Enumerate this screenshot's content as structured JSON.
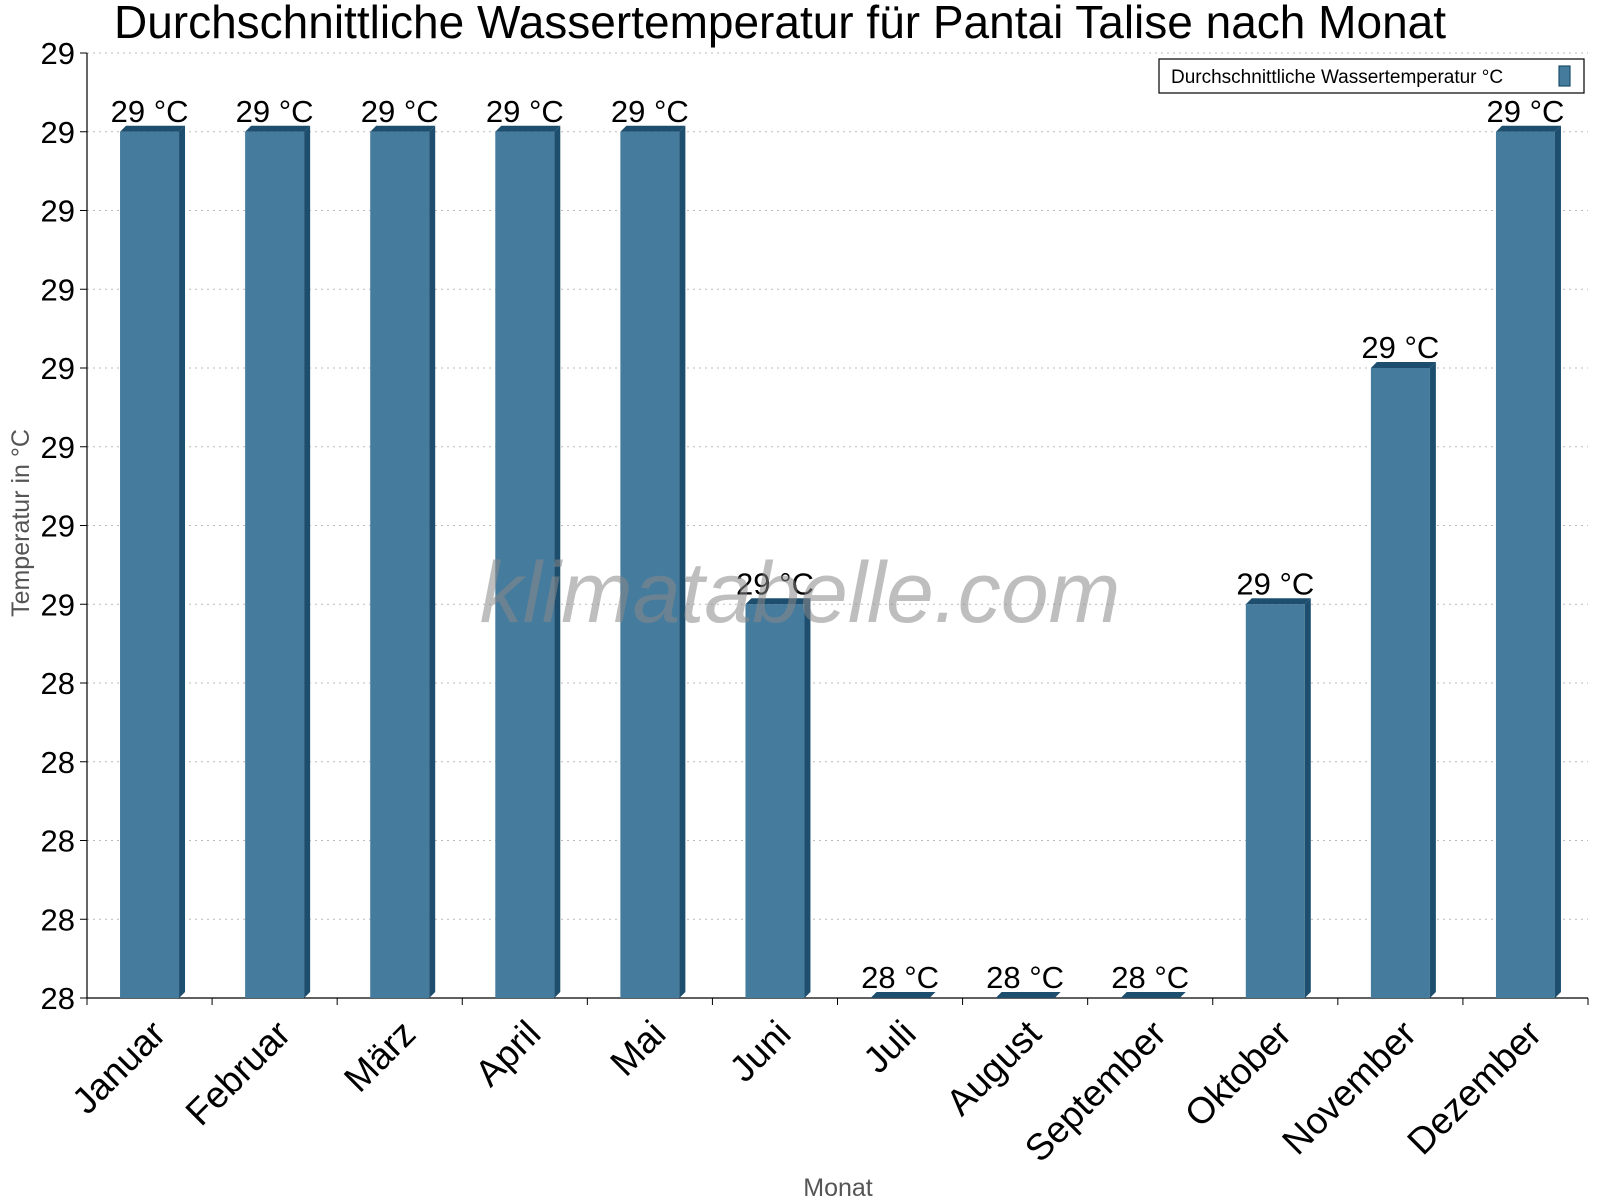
{
  "chart_data": {
    "type": "bar",
    "title": "Durchschnittliche Wassertemperatur für Pantai Talise nach Monat",
    "xlabel": "Monat",
    "ylabel": "Temperatur in °C",
    "categories": [
      "Januar",
      "Februar",
      "März",
      "April",
      "Mai",
      "Juni",
      "Juli",
      "August",
      "September",
      "Oktober",
      "November",
      "Dezember"
    ],
    "series": [
      {
        "name": "Durchschnittliche Wassertemperatur °C",
        "values": [
          29.1,
          29.1,
          29.1,
          29.1,
          29.1,
          28.5,
          28.0,
          28.0,
          28.0,
          28.5,
          28.8,
          29.1
        ],
        "data_labels": [
          "29 °C",
          "29 °C",
          "29 °C",
          "29 °C",
          "29 °C",
          "29 °C",
          "28 °C",
          "28 °C",
          "28 °C",
          "29 °C",
          "29 °C",
          "29 °C"
        ]
      }
    ],
    "ylim": [
      28.0,
      29.2
    ],
    "yticks": [
      28.0,
      28.1,
      28.2,
      28.3,
      28.4,
      28.5,
      28.6,
      28.7,
      28.8,
      28.9,
      29.0,
      29.1,
      29.2
    ],
    "ytick_labels": [
      "28",
      "28",
      "28",
      "28",
      "28",
      "29",
      "29",
      "29",
      "29",
      "29",
      "29",
      "29",
      "29"
    ],
    "grid": true,
    "legend_position": "top-right",
    "bar_color": "#457b9d",
    "bar_shade_color": "#1d4e6e",
    "watermark": "klimatabelle.com"
  }
}
